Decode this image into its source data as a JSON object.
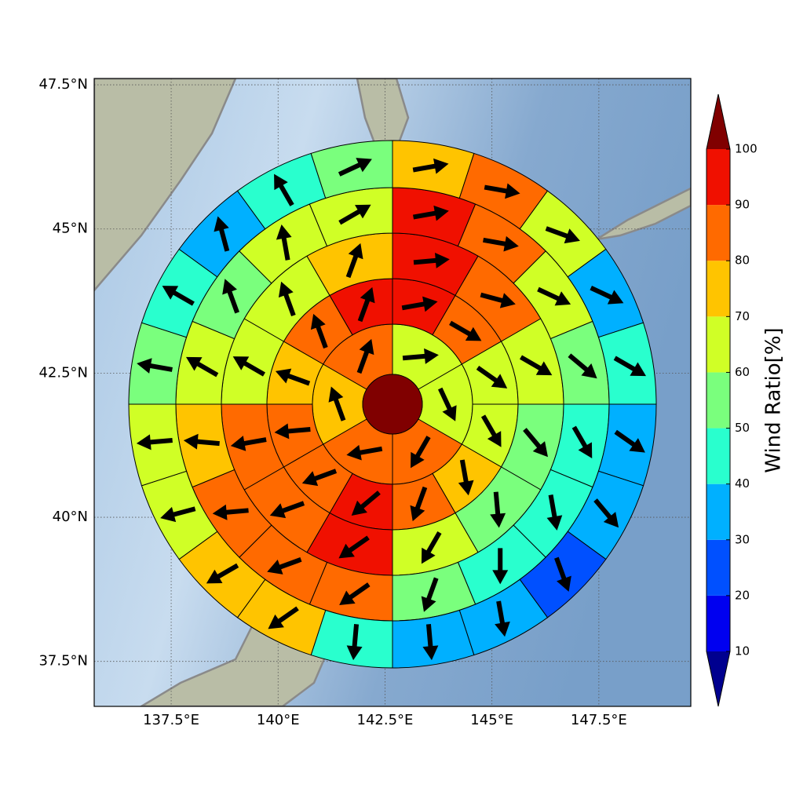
{
  "chart_data": {
    "type": "polar-sector-map",
    "xlim": [
      135.7,
      149.65
    ],
    "ylim": [
      36.72,
      47.61
    ],
    "xticks": [
      {
        "value": 137.5,
        "label": "137.5°E"
      },
      {
        "value": 140,
        "label": "140°E"
      },
      {
        "value": 142.5,
        "label": "142.5°E"
      },
      {
        "value": 145,
        "label": "145°E"
      },
      {
        "value": 147.5,
        "label": "147.5°E"
      }
    ],
    "yticks": [
      {
        "value": 37.5,
        "label": "37.5°N"
      },
      {
        "value": 40,
        "label": "40°N"
      },
      {
        "value": 42.5,
        "label": "42.5°N"
      },
      {
        "value": 45,
        "label": "45°N"
      },
      {
        "value": 47.5,
        "label": "47.5°N"
      }
    ],
    "grid": true,
    "center": {
      "value": 105
    },
    "rings": [
      {
        "values": [
          65,
          65,
          85,
          85,
          75,
          85
        ],
        "directions": [
          85,
          155,
          210,
          260,
          340,
          20
        ]
      },
      {
        "values": [
          95,
          85,
          65,
          65,
          75,
          85,
          95,
          85,
          85,
          75,
          85,
          95
        ],
        "directions": [
          80,
          120,
          125,
          150,
          170,
          200,
          230,
          250,
          265,
          290,
          340,
          20
        ]
      },
      {
        "values": [
          95,
          85,
          65,
          55,
          55,
          65,
          95,
          85,
          85,
          65,
          65,
          75
        ],
        "directions": [
          85,
          105,
          120,
          140,
          175,
          210,
          235,
          250,
          260,
          300,
          340,
          20
        ]
      },
      {
        "values": [
          95,
          85,
          65,
          55,
          45,
          45,
          45,
          55,
          85,
          85,
          85,
          75,
          65,
          55,
          65,
          65
        ],
        "directions": [
          80,
          100,
          115,
          130,
          150,
          170,
          180,
          200,
          235,
          250,
          265,
          275,
          300,
          340,
          350,
          60
        ]
      },
      {
        "values": [
          75,
          85,
          65,
          35,
          45,
          35,
          35,
          25,
          35,
          35,
          45,
          75,
          75,
          65,
          65,
          55,
          45,
          35,
          45,
          55
        ],
        "directions": [
          80,
          100,
          110,
          115,
          120,
          125,
          140,
          160,
          170,
          175,
          185,
          235,
          240,
          255,
          265,
          280,
          300,
          345,
          330,
          65
        ]
      }
    ],
    "colorbar": {
      "label": "Wind Ratio[%]",
      "ticks": [
        10,
        20,
        30,
        40,
        50,
        60,
        70,
        80,
        90,
        100
      ],
      "lim": [
        10,
        100
      ],
      "colors": [
        "#00008f",
        "#0000f0",
        "#0050ff",
        "#00b0ff",
        "#29ffce",
        "#7aff7d",
        "#d0ff26",
        "#ffc400",
        "#ff6a00",
        "#f01000",
        "#800000"
      ]
    }
  }
}
